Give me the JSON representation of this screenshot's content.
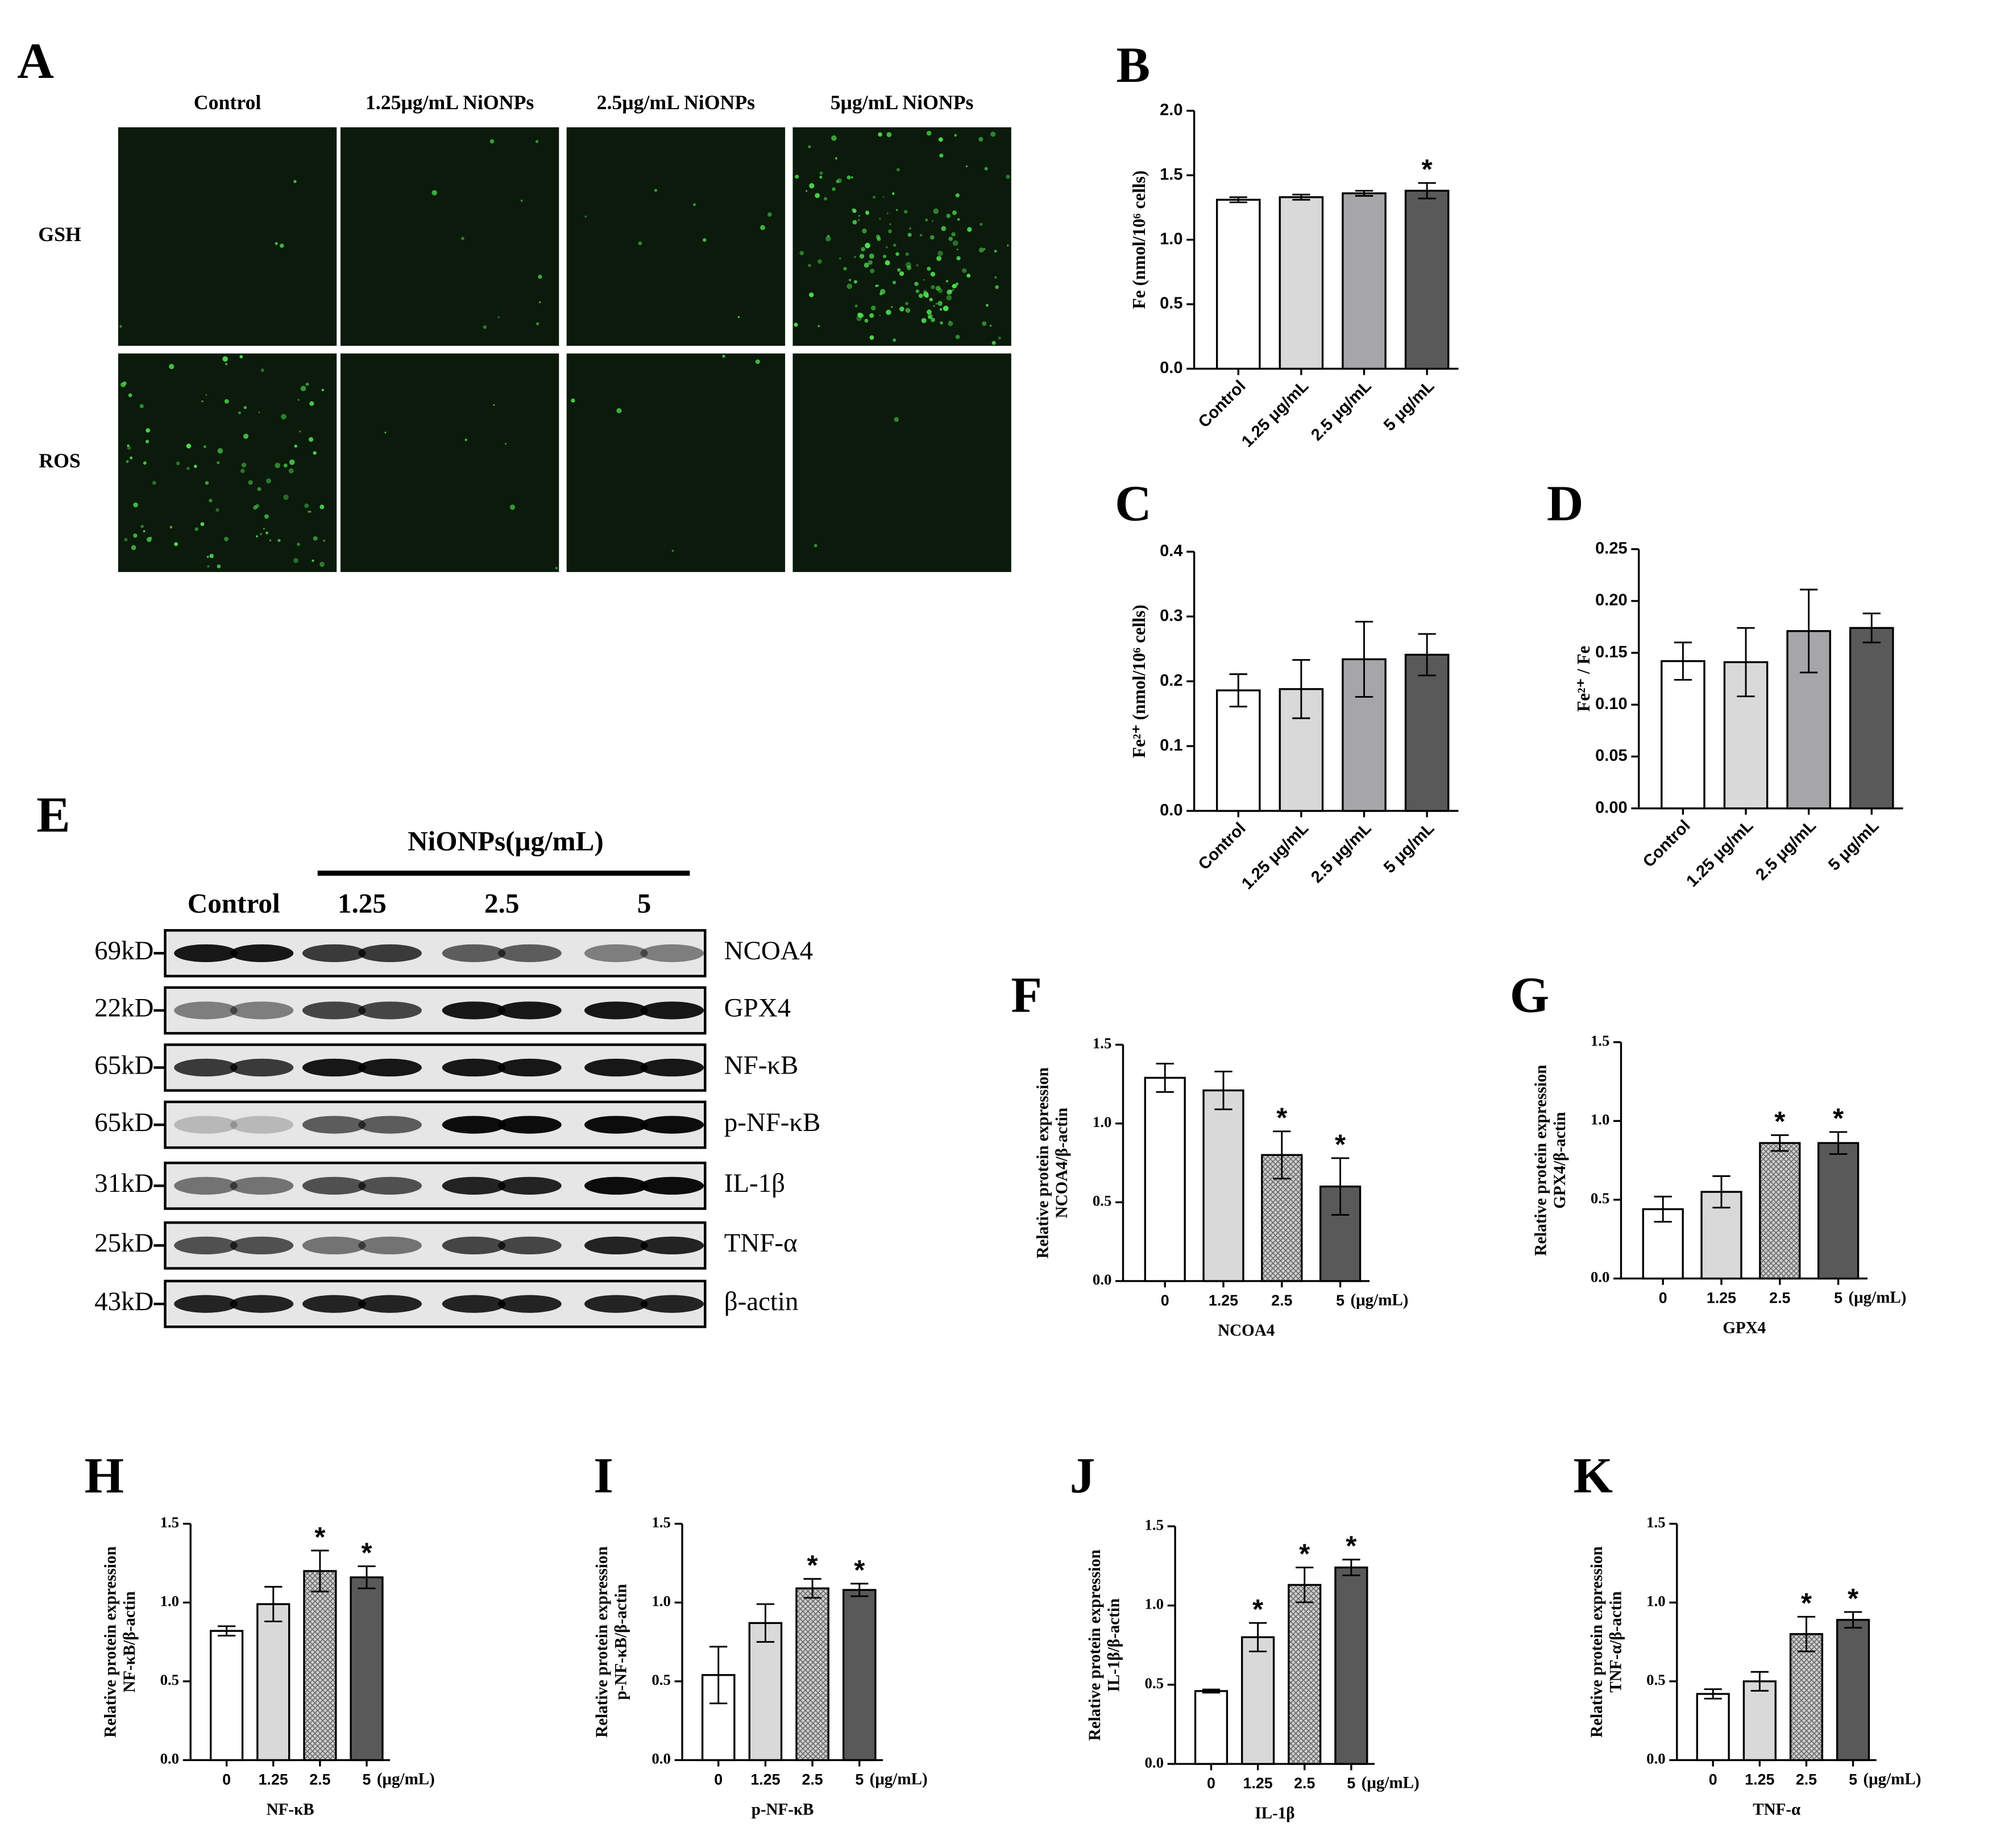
{
  "panel_a": {
    "label": "A",
    "columns": [
      "Control",
      "1.25μg/mL NiONPs",
      "2.5μg/mL NiONPs",
      "5μg/mL NiONPs"
    ],
    "rows": [
      "GSH",
      "ROS"
    ]
  },
  "panel_e": {
    "label": "E",
    "group_label": "NiONPs(μg/mL)",
    "lanes": [
      "Control",
      "1.25",
      "2.5",
      "5"
    ],
    "blots": [
      {
        "weight": "69kD",
        "protein": "NCOA4"
      },
      {
        "weight": "22kD",
        "protein": "GPX4"
      },
      {
        "weight": "65kD",
        "protein": "NF-κB"
      },
      {
        "weight": "65kD",
        "protein": "p-NF-κB"
      },
      {
        "weight": "31kD",
        "protein": "IL-1β"
      },
      {
        "weight": "25kD",
        "protein": "TNF-α"
      },
      {
        "weight": "43kD",
        "protein": "β-actin"
      }
    ]
  },
  "chart_data": [
    {
      "type": "bar",
      "panel": "B",
      "ylabel": [
        "Fe (nmol/10⁶ cells)"
      ],
      "categories": [
        "Control",
        "1.25 μg/mL",
        "2.5 μg/mL",
        "5 μg/mL"
      ],
      "values": [
        1.31,
        1.33,
        1.36,
        1.38
      ],
      "errors": [
        0.02,
        0.02,
        0.02,
        0.06
      ],
      "significance": [
        null,
        null,
        null,
        "*"
      ],
      "colors": [
        "#ffffff",
        "#d9d9d9",
        "#a6a6a8",
        "#595959"
      ],
      "ylim": [
        0,
        2
      ],
      "yticks": [
        {
          "value": 0,
          "label": "0.0"
        },
        0.5,
        {
          "value": 1,
          "label": "1.0"
        },
        1.5,
        {
          "value": 2,
          "label": "2.0"
        }
      ]
    },
    {
      "type": "bar",
      "panel": "C",
      "ylabel": [
        "Fe²⁺ (nmol/10⁶ cells)"
      ],
      "categories": [
        "Control",
        "1.25 μg/mL",
        "2.5 μg/mL",
        "5 μg/mL"
      ],
      "values": [
        0.186,
        0.188,
        0.234,
        0.241
      ],
      "errors": [
        0.025,
        0.045,
        0.058,
        0.032
      ],
      "colors": [
        "#ffffff",
        "#d9d9d9",
        "#a6a6a8",
        "#595959"
      ],
      "ylim": [
        0,
        0.4
      ],
      "yticks": [
        {
          "value": 0,
          "label": "0.0"
        },
        0.1,
        0.2,
        0.3,
        0.4
      ]
    },
    {
      "type": "bar",
      "panel": "D",
      "ylabel": [
        "Fe²⁺ / Fe"
      ],
      "categories": [
        "Control",
        "1.25 μg/mL",
        "2.5 μg/mL",
        "5 μg/mL"
      ],
      "values": [
        0.142,
        0.141,
        0.171,
        0.174
      ],
      "errors": [
        0.018,
        0.033,
        0.04,
        0.014
      ],
      "colors": [
        "#ffffff",
        "#d9d9d9",
        "#a6a6a8",
        "#595959"
      ],
      "ylim": [
        0,
        0.25
      ],
      "yticks": [
        {
          "value": 0,
          "label": "0.00"
        },
        0.05,
        {
          "value": 0.1,
          "label": "0.10"
        },
        0.15,
        {
          "value": 0.2,
          "label": "0.20"
        },
        0.25
      ]
    },
    {
      "type": "bar",
      "panel": "F",
      "ylabel": [
        "Relative protein expression",
        "NCOA4/β-actin"
      ],
      "xlabel": "NCOA4",
      "x_unit": "(μg/mL)",
      "categories": [
        "0",
        "1.25",
        "2.5",
        "5"
      ],
      "values": [
        1.29,
        1.21,
        0.8,
        0.6
      ],
      "errors": [
        0.09,
        0.12,
        0.15,
        0.18
      ],
      "significance": [
        null,
        null,
        "*",
        "*"
      ],
      "colors": [
        "#ffffff",
        "#d9d9d9",
        "#c8c8c8",
        "#595959"
      ],
      "patterns": [
        null,
        null,
        "crosshatch",
        null
      ],
      "ylim": [
        0,
        1.5
      ],
      "yticks": [
        {
          "value": 0,
          "label": "0.0"
        },
        0.5,
        {
          "value": 1,
          "label": "1.0"
        },
        1.5
      ]
    },
    {
      "type": "bar",
      "panel": "G",
      "ylabel": [
        "Relative protein expression",
        "GPX4/β-actin"
      ],
      "xlabel": "GPX4",
      "x_unit": "(μg/mL)",
      "categories": [
        "0",
        "1.25",
        "2.5",
        "5"
      ],
      "values": [
        0.44,
        0.55,
        0.86,
        0.86
      ],
      "errors": [
        0.08,
        0.1,
        0.05,
        0.07
      ],
      "significance": [
        null,
        null,
        "*",
        "*"
      ],
      "colors": [
        "#ffffff",
        "#d9d9d9",
        "#c8c8c8",
        "#595959"
      ],
      "patterns": [
        null,
        null,
        "crosshatch",
        null
      ],
      "ylim": [
        0,
        1.5
      ],
      "yticks": [
        {
          "value": 0,
          "label": "0.0"
        },
        0.5,
        {
          "value": 1,
          "label": "1.0"
        },
        1.5
      ]
    },
    {
      "type": "bar",
      "panel": "H",
      "ylabel": [
        "Relative protein expression",
        "NF-κB/β-actin"
      ],
      "xlabel": "NF-κB",
      "x_unit": "(μg/mL)",
      "categories": [
        "0",
        "1.25",
        "2.5",
        "5"
      ],
      "values": [
        0.82,
        0.99,
        1.2,
        1.16
      ],
      "errors": [
        0.03,
        0.11,
        0.13,
        0.07
      ],
      "significance": [
        null,
        null,
        "*",
        "*"
      ],
      "colors": [
        "#ffffff",
        "#d9d9d9",
        "#c8c8c8",
        "#595959"
      ],
      "patterns": [
        null,
        null,
        "crosshatch",
        null
      ],
      "ylim": [
        0,
        1.5
      ],
      "yticks": [
        {
          "value": 0,
          "label": "0.0"
        },
        0.5,
        {
          "value": 1,
          "label": "1.0"
        },
        1.5
      ]
    },
    {
      "type": "bar",
      "panel": "I",
      "ylabel": [
        "Relative protein expression",
        "p-NF-κB/β-actin"
      ],
      "xlabel": "p-NF-κB",
      "x_unit": "(μg/mL)",
      "categories": [
        "0",
        "1.25",
        "2.5",
        "5"
      ],
      "values": [
        0.54,
        0.87,
        1.09,
        1.08
      ],
      "errors": [
        0.18,
        0.12,
        0.06,
        0.04
      ],
      "significance": [
        null,
        null,
        "*",
        "*"
      ],
      "colors": [
        "#ffffff",
        "#d9d9d9",
        "#c8c8c8",
        "#595959"
      ],
      "patterns": [
        null,
        null,
        "crosshatch",
        null
      ],
      "ylim": [
        0,
        1.5
      ],
      "yticks": [
        {
          "value": 0,
          "label": "0.0"
        },
        0.5,
        {
          "value": 1,
          "label": "1.0"
        },
        1.5
      ]
    },
    {
      "type": "bar",
      "panel": "J",
      "ylabel": [
        "Relative protein expression",
        "IL-1β/β-actin"
      ],
      "xlabel": "IL-1β",
      "x_unit": "(μg/mL)",
      "categories": [
        "0",
        "1.25",
        "2.5",
        "5"
      ],
      "values": [
        0.46,
        0.8,
        1.13,
        1.24
      ],
      "errors": [
        0.01,
        0.09,
        0.11,
        0.05
      ],
      "significance": [
        null,
        "*",
        "*",
        "*"
      ],
      "colors": [
        "#ffffff",
        "#d9d9d9",
        "#c8c8c8",
        "#595959"
      ],
      "patterns": [
        null,
        null,
        "crosshatch",
        null
      ],
      "ylim": [
        0,
        1.5
      ],
      "yticks": [
        {
          "value": 0,
          "label": "0.0"
        },
        0.5,
        {
          "value": 1,
          "label": "1.0"
        },
        1.5
      ]
    },
    {
      "type": "bar",
      "panel": "K",
      "ylabel": [
        "Relative protein expression",
        "TNF-α/β-actin"
      ],
      "xlabel": "TNF-α",
      "x_unit": "(μg/mL)",
      "categories": [
        "0",
        "1.25",
        "2.5",
        "5"
      ],
      "values": [
        0.42,
        0.5,
        0.8,
        0.89
      ],
      "errors": [
        0.03,
        0.06,
        0.11,
        0.05
      ],
      "significance": [
        null,
        null,
        "*",
        "*"
      ],
      "colors": [
        "#ffffff",
        "#d9d9d9",
        "#c8c8c8",
        "#595959"
      ],
      "patterns": [
        null,
        null,
        "crosshatch",
        null
      ],
      "ylim": [
        0,
        1.5
      ],
      "yticks": [
        {
          "value": 0,
          "label": "0.0"
        },
        0.5,
        {
          "value": 1,
          "label": "1.0"
        },
        1.5
      ]
    }
  ]
}
